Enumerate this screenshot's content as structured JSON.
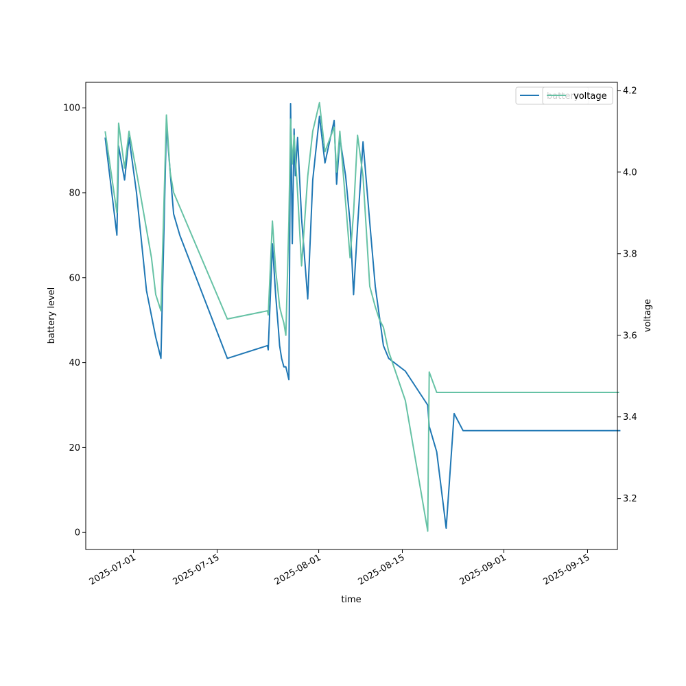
{
  "chart_data": {
    "type": "line",
    "xlabel": "time",
    "ylabel": "battery level",
    "y2label": "voltage",
    "xlim": [
      "2025-06-23T00:00",
      "2025-09-20T00:00"
    ],
    "ylim": [
      -4,
      106
    ],
    "y2lim": [
      3.075,
      4.22
    ],
    "x_ticks": [
      "2025-07-01",
      "2025-07-15",
      "2025-08-01",
      "2025-08-15",
      "2025-09-01",
      "2025-09-15"
    ],
    "y_ticks": [
      0,
      20,
      40,
      60,
      80,
      100
    ],
    "y2_ticks": [
      3.2,
      3.4,
      3.6,
      3.8,
      4.0,
      4.2
    ],
    "grid": false,
    "legends": [
      {
        "entries": [
          "battery"
        ],
        "placement": "top-right"
      },
      {
        "entries": [
          "voltage"
        ],
        "placement": "top-right"
      }
    ],
    "series": [
      {
        "name": "battery",
        "axis": "left",
        "color": "#1f77b4",
        "x": [
          "2025-06-26T06:00",
          "2025-06-28T05:00",
          "2025-06-28T12:00",
          "2025-06-29T12:00",
          "2025-06-30T06:00",
          "2025-07-01T12:00",
          "2025-07-03T04:00",
          "2025-07-04T17:00",
          "2025-07-05T14:00",
          "2025-07-06T12:00",
          "2025-07-07T03:00",
          "2025-07-07T17:00",
          "2025-07-08T18:00",
          "2025-07-16T17:00",
          "2025-07-23T10:00",
          "2025-07-23T13:00",
          "2025-07-24T06:00",
          "2025-07-24T19:00",
          "2025-07-25T06:00",
          "2025-07-25T11:00",
          "2025-07-25T19:00",
          "2025-07-26T04:00",
          "2025-07-26T12:00",
          "2025-07-27T00:00",
          "2025-07-27T07:00",
          "2025-07-27T14:00",
          "2025-07-27T21:00",
          "2025-07-28T02:00",
          "2025-07-28T11:00",
          "2025-07-29T03:00",
          "2025-07-30T04:00",
          "2025-07-31T00:00",
          "2025-08-01T03:00",
          "2025-08-02T01:00",
          "2025-08-03T14:00",
          "2025-08-04T00:00",
          "2025-08-04T13:00",
          "2025-08-05T12:00",
          "2025-08-06T06:00",
          "2025-08-06T20:00",
          "2025-08-07T12:00",
          "2025-08-08T10:00",
          "2025-08-09T13:00",
          "2025-08-10T11:00",
          "2025-08-11T20:00",
          "2025-08-12T17:00",
          "2025-08-15T12:00",
          "2025-08-19T06:00",
          "2025-08-19T12:00",
          "2025-08-20T18:00",
          "2025-08-22T08:00",
          "2025-08-23T16:00",
          "2025-08-25T04:00",
          "2025-08-26T13:00",
          "2025-08-26T22:00",
          "2025-08-27T08:00",
          "2025-08-27T16:00",
          "2025-08-28T17:00",
          "2025-08-29T15:00",
          "2025-08-30T12:00",
          "2025-08-30T16:00",
          "2025-08-30T20:00",
          "2025-08-31T04:00",
          "2025-09-20T00:00",
          "2025-09-20T07:00",
          "2025-09-20T12:00"
        ],
        "values": [
          93,
          70,
          91,
          83,
          93,
          80,
          57,
          46,
          41,
          96,
          85,
          75,
          70,
          41,
          44,
          43,
          68,
          56,
          48,
          44,
          41,
          39,
          39,
          36,
          101,
          68,
          95,
          84,
          93,
          74,
          55,
          83,
          98,
          87,
          97,
          82,
          93,
          84,
          73,
          56,
          72,
          92,
          73,
          58,
          44,
          41,
          38,
          30,
          25,
          19,
          1,
          28,
          24,
          24,
          24,
          24,
          24,
          24,
          24,
          24,
          24,
          24,
          24,
          24,
          24,
          24
        ]
      },
      {
        "name": "voltage",
        "axis": "right",
        "color": "#66c2a5",
        "x": [
          "2025-06-26T06:00",
          "2025-06-28T05:00",
          "2025-06-28T12:00",
          "2025-06-29T12:00",
          "2025-06-30T06:00",
          "2025-07-01T12:00",
          "2025-07-04T00:00",
          "2025-07-04T17:00",
          "2025-07-05T14:00",
          "2025-07-06T12:00",
          "2025-07-07T03:00",
          "2025-07-07T17:00",
          "2025-07-16T17:00",
          "2025-07-23T10:00",
          "2025-07-23T13:00",
          "2025-07-24T06:00",
          "2025-07-24T19:00",
          "2025-07-25T06:00",
          "2025-07-25T11:00",
          "2025-07-25T19:00",
          "2025-07-26T04:00",
          "2025-07-26T12:00",
          "2025-07-27T00:00",
          "2025-07-27T07:00",
          "2025-07-27T14:00",
          "2025-07-27T21:00",
          "2025-07-28T11:00",
          "2025-07-29T03:00",
          "2025-07-30T04:00",
          "2025-07-31T00:00",
          "2025-08-01T03:00",
          "2025-08-02T01:00",
          "2025-08-03T14:00",
          "2025-08-04T00:00",
          "2025-08-04T13:00",
          "2025-08-06T06:00",
          "2025-08-06T20:00",
          "2025-08-07T12:00",
          "2025-08-08T10:00",
          "2025-08-09T13:00",
          "2025-08-10T11:00",
          "2025-08-11T03:00",
          "2025-08-11T20:00",
          "2025-08-12T17:00",
          "2025-08-15T12:00",
          "2025-08-19T06:00",
          "2025-08-19T12:00",
          "2025-08-20T18:00",
          "2025-09-20T00:00",
          "2025-09-20T07:00"
        ],
        "values": [
          4.1,
          3.9,
          4.12,
          4.01,
          4.1,
          4.0,
          3.79,
          3.7,
          3.66,
          4.14,
          4.0,
          3.95,
          3.64,
          3.66,
          3.65,
          3.88,
          3.76,
          3.7,
          3.67,
          3.65,
          3.63,
          3.6,
          3.88,
          4.13,
          4.02,
          4.09,
          3.95,
          3.77,
          3.99,
          4.1,
          4.17,
          4.05,
          4.11,
          4.0,
          4.1,
          3.79,
          3.9,
          4.09,
          3.99,
          3.72,
          3.67,
          3.64,
          3.62,
          3.56,
          3.44,
          3.12,
          3.51,
          3.46,
          3.46,
          3.46
        ]
      }
    ]
  }
}
